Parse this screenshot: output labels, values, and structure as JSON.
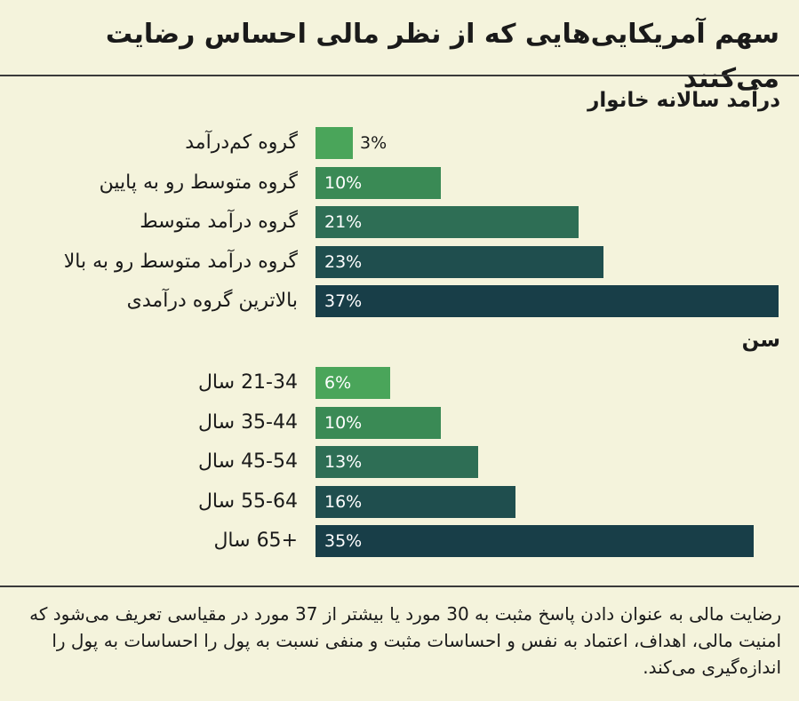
{
  "title": "سهم آمریکایی‌هایی که از نظر مالی احساس رضایت می‌کنند",
  "note": "رضایت مالی به عنوان دادن پاسخ مثبت به 30 مورد یا بیشتر از 37 مورد در مقیاسی تعریف می‌شود که امنیت مالی، اهداف، اعتماد به نفس و احساسات مثبت و منفی نسبت به پول را احساسات به پول را اندازه‌گیری می‌کند.",
  "colors": {
    "background": "#f4f3dc",
    "light_green": "#4aa55a",
    "mid_green": "#3a8a55",
    "teal_green": "#2e6e55",
    "dark_teal": "#1f4e4e",
    "darkest_teal": "#183e48"
  },
  "chart_data": [
    {
      "type": "bar",
      "orientation": "horizontal",
      "title": "درآمد سالانه خانوار",
      "categories": [
        "گروه کم‌درآمد",
        "گروه متوسط رو به پایین",
        "گروه درآمد متوسط",
        "گروه درآمد متوسط رو به بالا",
        "بالاترین گروه درآمدی"
      ],
      "values": [
        3,
        10,
        21,
        23,
        37
      ],
      "value_labels": [
        "3%",
        "10%",
        "21%",
        "23%",
        "37%"
      ],
      "xlim": [
        0,
        37
      ]
    },
    {
      "type": "bar",
      "orientation": "horizontal",
      "title": "سن",
      "categories": [
        "21-34 سال",
        "35-44 سال",
        "45-54 سال",
        "55-64 سال",
        "+65 سال"
      ],
      "values": [
        6,
        10,
        13,
        16,
        35
      ],
      "value_labels": [
        "6%",
        "10%",
        "13%",
        "16%",
        "35%"
      ],
      "xlim": [
        0,
        37
      ]
    }
  ]
}
